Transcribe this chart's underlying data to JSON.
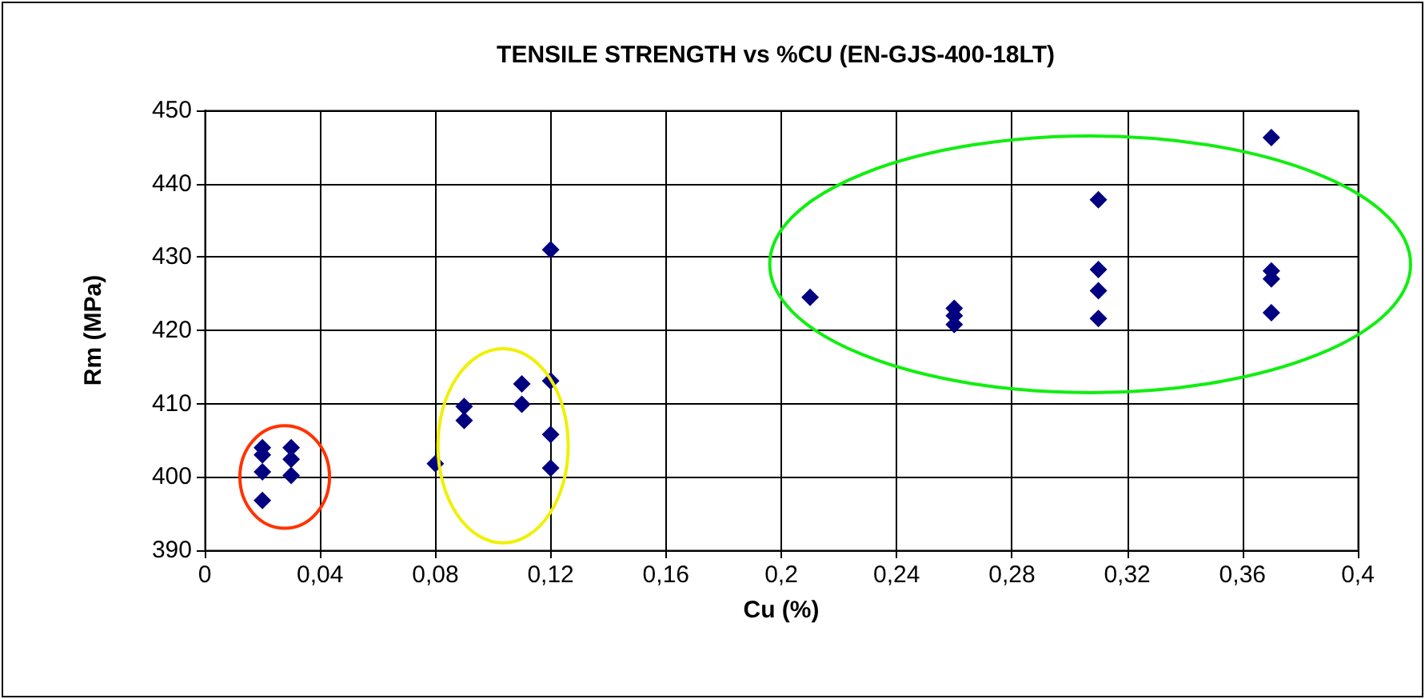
{
  "chart_data": {
    "type": "scatter",
    "title": "TENSILE STRENGTH vs %CU (EN-GJS-400-18LT)",
    "xlabel": "Cu (%)",
    "ylabel": "Rm (MPa)",
    "series": [
      {
        "color": "#000080",
        "x": [
          0.02,
          0.02,
          0.02,
          0.02,
          0.03,
          0.03,
          0.03,
          0.08,
          0.09,
          0.09,
          0.11,
          0.11,
          0.12,
          0.12,
          0.12,
          0.12,
          0.21,
          0.26,
          0.26,
          0.26,
          0.31,
          0.31,
          0.31,
          0.31,
          0.37,
          0.37,
          0.37,
          0.37
        ],
        "values": [
          404,
          403,
          400.7,
          396.8,
          404,
          402.4,
          400.2,
          401.8,
          409.6,
          407.7,
          412.7,
          409.9,
          431,
          413.1,
          405.8,
          401.2,
          424.5,
          423,
          422,
          420.8,
          437.8,
          428.3,
          425.4,
          421.6,
          446.3,
          428.1,
          427,
          422.4
        ]
      }
    ],
    "xlim": [
      0,
      0.4
    ],
    "xticks": [
      0,
      {
        "value": 0.04,
        "label": "0,04"
      },
      {
        "value": 0.08,
        "label": "0,08"
      },
      {
        "value": 0.12,
        "label": "0,12"
      },
      {
        "value": 0.16,
        "label": "0,16"
      },
      {
        "value": 0.2,
        "label": "0,2"
      },
      {
        "value": 0.24,
        "label": "0,24"
      },
      {
        "value": 0.28,
        "label": "0,28"
      },
      {
        "value": 0.32,
        "label": "0,32"
      },
      {
        "value": 0.36,
        "label": "0,36"
      },
      {
        "value": 0.4,
        "label": "0,4"
      }
    ],
    "ylim": [
      390,
      450
    ],
    "yticks": [
      390,
      400,
      410,
      420,
      430,
      440,
      450
    ],
    "grid": true,
    "marker": "diamond"
  }
}
